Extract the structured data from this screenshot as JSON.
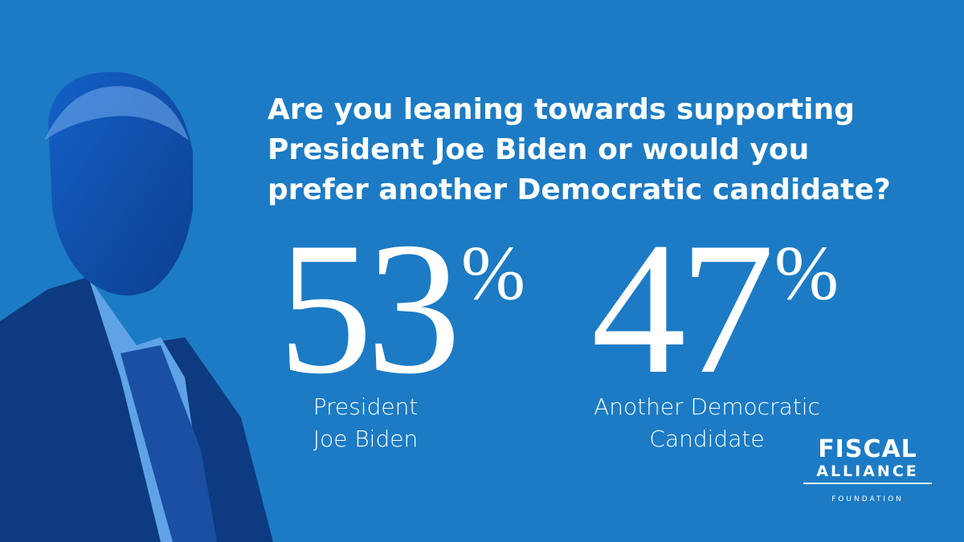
{
  "question": {
    "lines": [
      "Are you leaning towards supporting",
      "President Joe Biden or would you",
      "prefer another Democratic candidate?"
    ]
  },
  "results": [
    {
      "number": "53",
      "unit": "%",
      "label_lines": [
        "President",
        "Joe Biden"
      ]
    },
    {
      "number": "47",
      "unit": "%",
      "label_lines": [
        "Another Democratic",
        "Candidate"
      ]
    }
  ],
  "logo": {
    "line1": "FISCAL",
    "line2": "ALLIANCE",
    "line3": "FOUNDATION"
  }
}
